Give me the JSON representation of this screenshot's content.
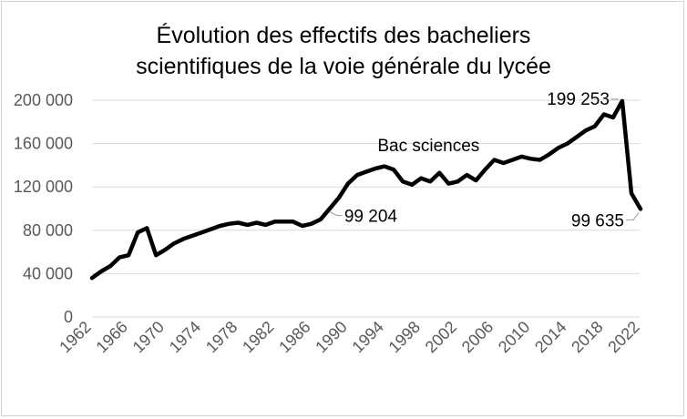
{
  "chart_data": {
    "type": "line",
    "title_lines": [
      "Évolution des effectifs des bacheliers",
      "scientifiques de la voie générale du lycée"
    ],
    "xlabel": "",
    "ylabel": "",
    "xlim": [
      1962,
      2022
    ],
    "ylim": [
      0,
      200000
    ],
    "y_ticks": [
      0,
      40000,
      80000,
      120000,
      160000,
      200000
    ],
    "y_tick_labels": [
      "0",
      "40 000",
      "80 000",
      "120 000",
      "160 000",
      "200 000"
    ],
    "x_ticks": [
      1962,
      1966,
      1970,
      1974,
      1978,
      1982,
      1986,
      1990,
      1994,
      1998,
      2002,
      2006,
      2010,
      2014,
      2018,
      2022
    ],
    "x_tick_labels": [
      "1962",
      "1966",
      "1970",
      "1974",
      "1978",
      "1982",
      "1986",
      "1990",
      "1994",
      "1998",
      "2002",
      "2006",
      "2010",
      "2014",
      "2018",
      "2022"
    ],
    "grid": "horizontal",
    "line_color": "#000000",
    "series": [
      {
        "name": "Bac sciences",
        "x": [
          1962,
          1963,
          1964,
          1965,
          1966,
          1967,
          1968,
          1969,
          1970,
          1971,
          1972,
          1973,
          1974,
          1975,
          1976,
          1977,
          1978,
          1979,
          1980,
          1981,
          1982,
          1983,
          1984,
          1985,
          1986,
          1987,
          1988,
          1989,
          1990,
          1991,
          1992,
          1993,
          1994,
          1995,
          1996,
          1997,
          1998,
          1999,
          2000,
          2001,
          2002,
          2003,
          2004,
          2005,
          2006,
          2007,
          2008,
          2009,
          2010,
          2011,
          2012,
          2013,
          2014,
          2015,
          2016,
          2017,
          2018,
          2019,
          2020,
          2021,
          2022
        ],
        "values": [
          36000,
          42000,
          47000,
          55000,
          57000,
          78000,
          82000,
          57000,
          62000,
          68000,
          72000,
          75000,
          78000,
          81000,
          84000,
          86000,
          87000,
          85000,
          87000,
          85000,
          88000,
          88000,
          88000,
          84000,
          86000,
          90000,
          100000,
          110000,
          123000,
          131000,
          134000,
          137000,
          139000,
          136000,
          125000,
          122000,
          128000,
          125000,
          133000,
          123000,
          125000,
          131000,
          126000,
          136000,
          145000,
          142000,
          145000,
          148000,
          146000,
          145000,
          150000,
          156000,
          160000,
          166000,
          172000,
          176000,
          187000,
          184000,
          199253,
          114000,
          99635
        ]
      }
    ],
    "annotations": [
      {
        "text": "Bac sciences",
        "x": 2002,
        "y": 158000
      },
      {
        "text": "199 253",
        "x": 2020,
        "y": 199253,
        "label_x": 2015,
        "label_y": 204000
      },
      {
        "text": "99 204",
        "x": 1988,
        "y": 97000,
        "label_x": 1988.5,
        "label_y": 89000
      },
      {
        "text": "99 635",
        "x": 2022,
        "y": 99635,
        "label_x": 2016,
        "label_y": 88000
      }
    ]
  }
}
